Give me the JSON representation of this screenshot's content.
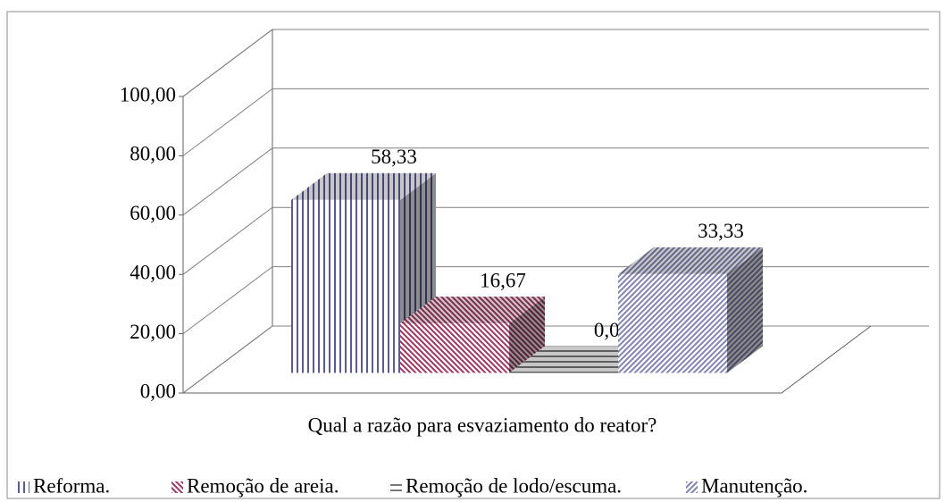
{
  "chart_data": {
    "type": "bar",
    "categories": [
      "Qual a razão para esvaziamento do reator?"
    ],
    "series": [
      {
        "name": "Reforma.",
        "color": "#5a5a9c",
        "values": [
          58.33
        ],
        "value_labels": [
          "58,33"
        ]
      },
      {
        "name": "Remoção de areia.",
        "color": "#a8305e",
        "values": [
          16.67
        ],
        "value_labels": [
          "16,67"
        ]
      },
      {
        "name": "Remoção de lodo/escuma.",
        "color": "#7a7a7a",
        "values": [
          0.0
        ],
        "value_labels": [
          "0,00"
        ]
      },
      {
        "name": "Manutenção.",
        "color": "#8282b4",
        "values": [
          33.33
        ],
        "value_labels": [
          "33,33"
        ]
      }
    ],
    "ylim": [
      0,
      100
    ],
    "yticks": [
      {
        "value": 0,
        "label": "0,00"
      },
      {
        "value": 20,
        "label": "20,00"
      },
      {
        "value": 40,
        "label": "40,00"
      },
      {
        "value": 60,
        "label": "60,00"
      },
      {
        "value": 80,
        "label": "80,00"
      },
      {
        "value": 100,
        "label": "100,00"
      }
    ],
    "grid": true,
    "legend": "bottom"
  }
}
